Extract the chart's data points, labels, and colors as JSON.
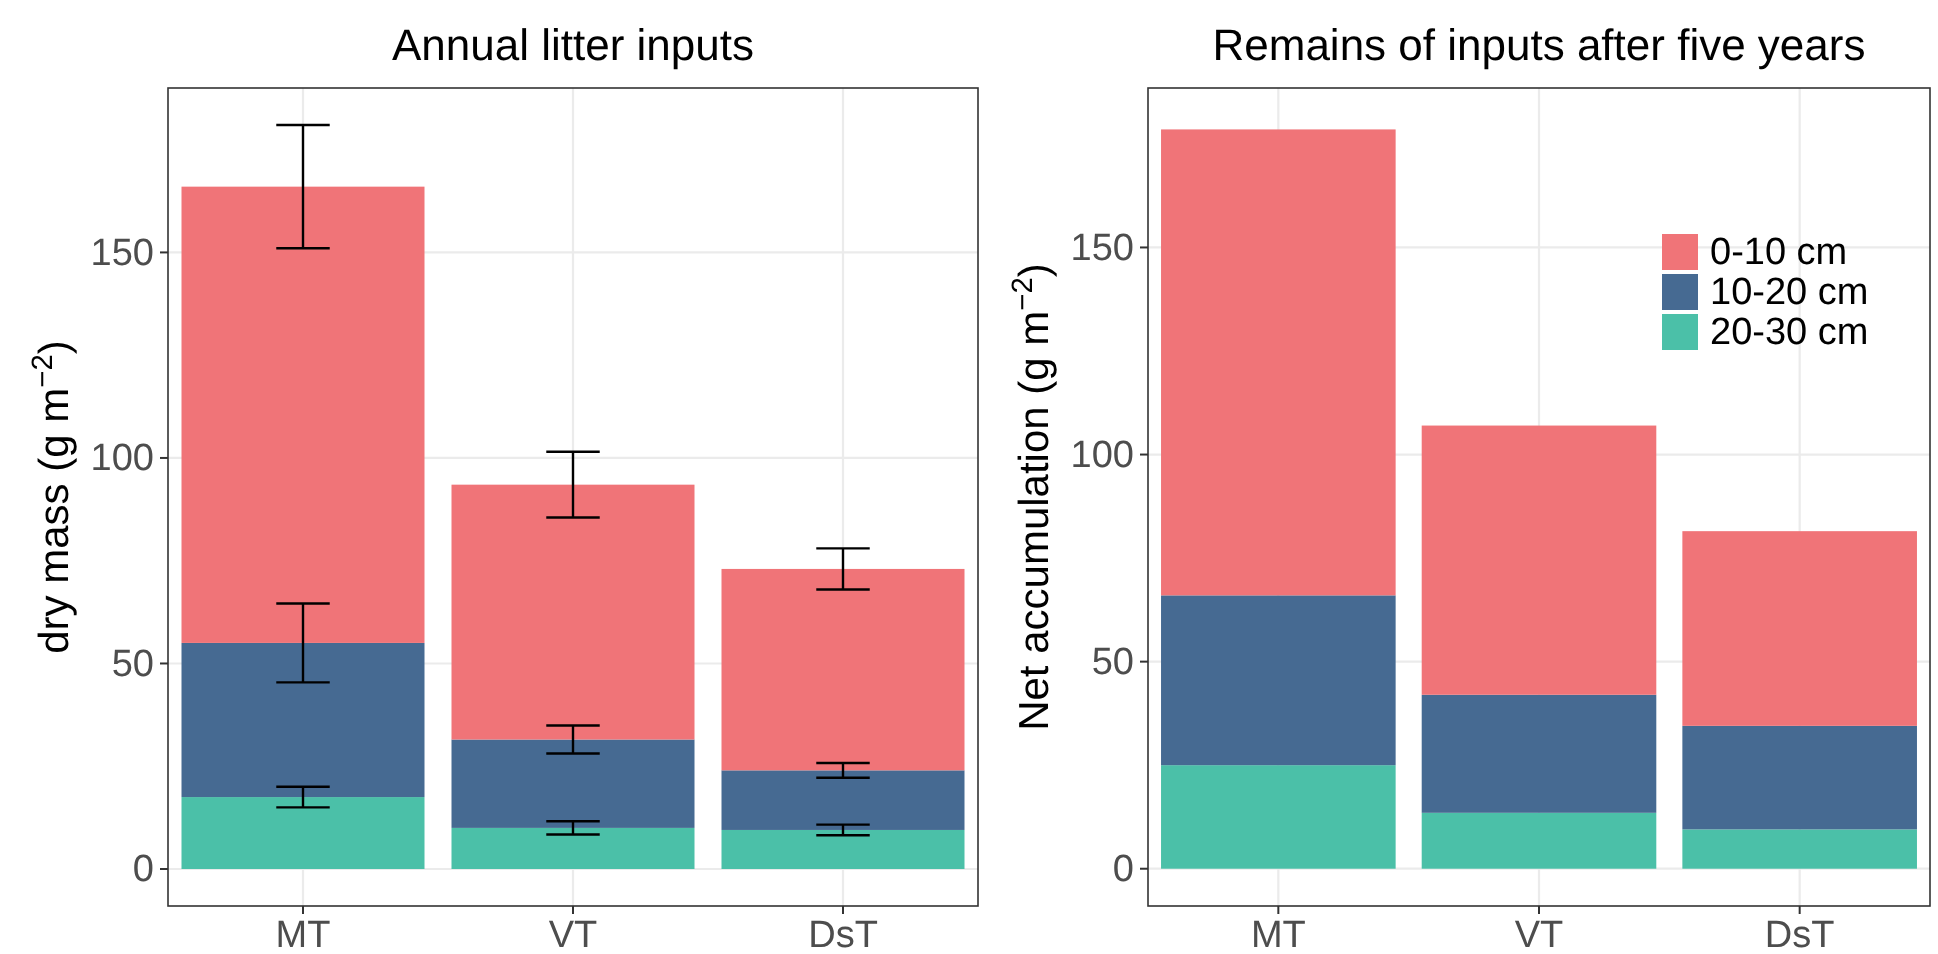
{
  "chart_data": [
    {
      "type": "bar",
      "title": "Annual litter inputs",
      "ylabel": "dry mass (g m$^{−2}$)",
      "categories": [
        "MT",
        "VT",
        "DsT"
      ],
      "stacked": true,
      "grid": true,
      "ylim": [
        -9,
        190
      ],
      "yticks": [
        0,
        50,
        100,
        150
      ],
      "series": [
        {
          "color": "#4bc0a8",
          "values": [
            17.5,
            10,
            9.5
          ],
          "errors": [
            2.5,
            1.6,
            1.3
          ]
        },
        {
          "color": "#466a92",
          "values": [
            37.5,
            21.5,
            14.5
          ],
          "errors": [
            9.6,
            3.4,
            1.8
          ]
        },
        {
          "color": "#f07478",
          "values": [
            111,
            62,
            49
          ],
          "errors": [
            15,
            8,
            5
          ]
        }
      ]
    },
    {
      "type": "bar",
      "title": "Remains of inputs after five years",
      "ylabel": "Net accumulation (g m$^{−2}$)",
      "categories": [
        "MT",
        "VT",
        "DsT"
      ],
      "stacked": true,
      "grid": true,
      "legend": "top right",
      "ylim": [
        -9,
        188.5
      ],
      "yticks": [
        0,
        50,
        100,
        150
      ],
      "series": [
        {
          "name": "20-30 cm",
          "color": "#4bc0a8",
          "values": [
            25,
            13.5,
            9.5
          ]
        },
        {
          "name": "10-20 cm",
          "color": "#466a92",
          "values": [
            41,
            28.5,
            25
          ]
        },
        {
          "name": "0-10 cm",
          "color": "#f07478",
          "values": [
            112.5,
            65,
            47
          ]
        }
      ]
    }
  ]
}
